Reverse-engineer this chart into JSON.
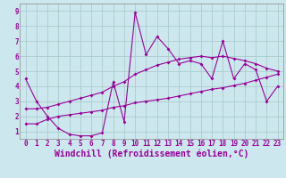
{
  "xlabel": "Windchill (Refroidissement éolien,°C)",
  "background_color": "#cce8ee",
  "grid_color": "#aacccc",
  "line_color": "#990099",
  "xlim": [
    -0.5,
    23.5
  ],
  "ylim": [
    0.5,
    9.5
  ],
  "xticks": [
    0,
    1,
    2,
    3,
    4,
    5,
    6,
    7,
    8,
    9,
    10,
    11,
    12,
    13,
    14,
    15,
    16,
    17,
    18,
    19,
    20,
    21,
    22,
    23
  ],
  "yticks": [
    1,
    2,
    3,
    4,
    5,
    6,
    7,
    8,
    9
  ],
  "line1_x": [
    0,
    1,
    2,
    3,
    4,
    5,
    6,
    7,
    8,
    9,
    10,
    11,
    12,
    13,
    14,
    15,
    16,
    17,
    18,
    19,
    20,
    21,
    22,
    23
  ],
  "line1_y": [
    4.5,
    3.0,
    2.0,
    1.2,
    0.8,
    0.7,
    0.7,
    0.9,
    4.3,
    1.65,
    8.9,
    6.1,
    7.3,
    6.5,
    5.5,
    5.7,
    5.5,
    4.5,
    7.0,
    4.5,
    5.5,
    5.1,
    3.0,
    4.0
  ],
  "line2_x": [
    0,
    1,
    2,
    3,
    4,
    5,
    6,
    7,
    8,
    9,
    10,
    11,
    12,
    13,
    14,
    15,
    16,
    17,
    18,
    19,
    20,
    21,
    22,
    23
  ],
  "line2_y": [
    2.5,
    2.5,
    2.6,
    2.8,
    3.0,
    3.2,
    3.4,
    3.6,
    4.0,
    4.3,
    4.8,
    5.1,
    5.4,
    5.6,
    5.8,
    5.9,
    6.0,
    5.9,
    6.0,
    5.85,
    5.7,
    5.5,
    5.2,
    5.0
  ],
  "line3_x": [
    0,
    1,
    2,
    3,
    4,
    5,
    6,
    7,
    8,
    9,
    10,
    11,
    12,
    13,
    14,
    15,
    16,
    17,
    18,
    19,
    20,
    21,
    22,
    23
  ],
  "line3_y": [
    1.5,
    1.5,
    1.8,
    2.0,
    2.1,
    2.2,
    2.3,
    2.4,
    2.6,
    2.7,
    2.9,
    3.0,
    3.1,
    3.2,
    3.35,
    3.5,
    3.65,
    3.8,
    3.9,
    4.05,
    4.2,
    4.4,
    4.6,
    4.8
  ],
  "tick_fontsize": 5.5,
  "xlabel_fontsize": 7.0,
  "markersize": 2.0
}
